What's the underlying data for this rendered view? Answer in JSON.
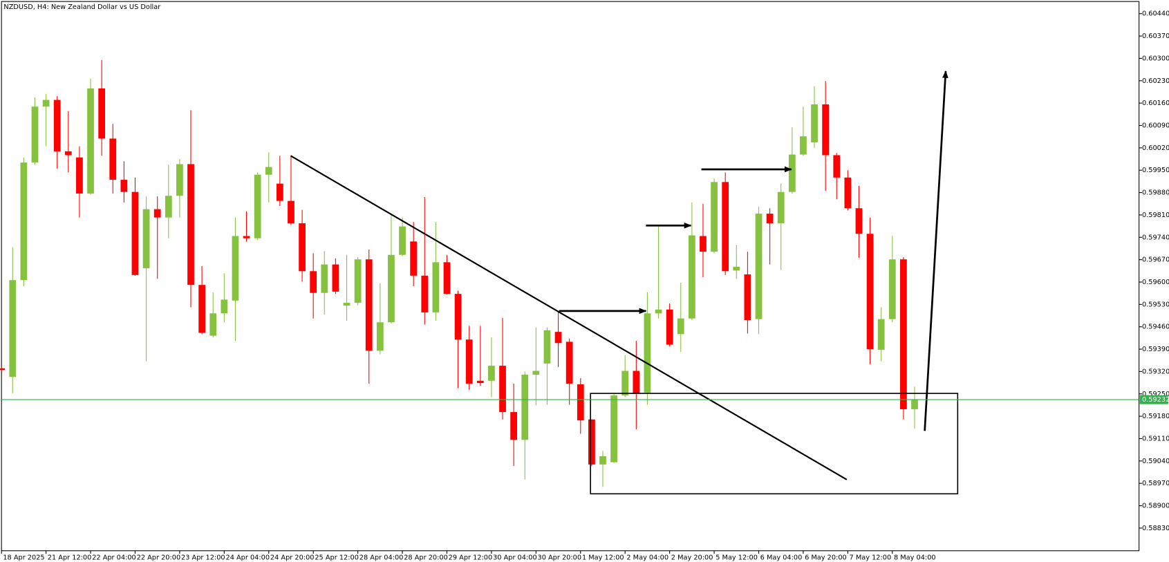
{
  "chart_data": {
    "type": "candlestick",
    "title": "NZDUSD, H4:  New Zealand Dollar vs US Dollar",
    "categories": [
      "18 Apr 2025",
      null,
      null,
      null,
      "21 Apr 12:00",
      null,
      null,
      null,
      "22 Apr 04:00",
      null,
      null,
      null,
      "22 Apr 20:00",
      null,
      null,
      null,
      "23 Apr 12:00",
      null,
      null,
      null,
      "24 Apr 04:00",
      null,
      null,
      null,
      "24 Apr 20:00",
      null,
      null,
      null,
      "25 Apr 12:00",
      null,
      null,
      null,
      "28 Apr 04:00",
      null,
      null,
      null,
      "28 Apr 20:00",
      null,
      null,
      null,
      "29 Apr 12:00",
      null,
      null,
      null,
      "30 Apr 04:00",
      null,
      null,
      null,
      "30 Apr 20:00",
      null,
      null,
      null,
      "1 May 12:00",
      null,
      null,
      null,
      "2 May 04:00",
      null,
      null,
      null,
      "2 May 20:00",
      null,
      null,
      null,
      "5 May 12:00",
      null,
      null,
      null,
      "6 May 04:00",
      null,
      null,
      null,
      "6 May 20:00",
      null,
      null,
      null,
      "7 May 12:00",
      null,
      null,
      null,
      "8 May 04:00",
      null,
      null
    ],
    "open": [
      0.5933,
      0.59303,
      0.59606,
      0.59974,
      0.60149,
      0.6017,
      0.60009,
      0.5999,
      0.59877,
      0.60206,
      0.60049,
      0.5992,
      0.59882,
      0.59643,
      0.59828,
      0.59802,
      0.5987,
      0.59969,
      0.59591,
      0.59432,
      0.59502,
      0.59542,
      0.59744,
      0.59737,
      0.59936,
      0.59908,
      0.59854,
      0.59784,
      0.59634,
      0.59566,
      0.59655,
      0.59526,
      0.59535,
      0.59671,
      0.59385,
      0.59474,
      0.59685,
      0.59727,
      0.5962,
      0.59505,
      0.59662,
      0.59563,
      0.5942,
      0.59291,
      0.59291,
      0.59338,
      0.59193,
      0.59106,
      0.5931,
      0.59345,
      0.59444,
      0.59413,
      0.5928,
      0.5917,
      0.59029,
      0.59036,
      0.59245,
      0.59322,
      0.59254,
      0.59502,
      0.59514,
      0.59437,
      0.59486,
      0.59744,
      0.59695,
      0.59913,
      0.59636,
      0.59624,
      0.59484,
      0.59814,
      0.59784,
      0.59882,
      0.59999,
      0.60037,
      0.60156,
      0.59997,
      0.59927,
      0.59831,
      0.59751,
      0.59388,
      0.59484,
      0.59671,
      0.59202
    ],
    "high": [
      0.59335,
      0.59709,
      0.5999,
      0.60178,
      0.60189,
      0.60182,
      0.60135,
      0.60025,
      0.60236,
      0.60295,
      0.60095,
      0.59978,
      0.59927,
      0.59868,
      0.59868,
      0.59967,
      0.59985,
      0.60138,
      0.5965,
      0.59568,
      0.59627,
      0.59802,
      0.59821,
      0.59943,
      0.60006,
      0.59995,
      0.59997,
      0.59826,
      0.5969,
      0.59697,
      0.59674,
      0.59685,
      0.59678,
      0.59702,
      0.59596,
      0.59814,
      0.59802,
      0.59788,
      0.59866,
      0.59788,
      0.59685,
      0.59573,
      0.59463,
      0.59463,
      0.59427,
      0.59488,
      0.59282,
      0.5932,
      0.59458,
      0.59458,
      0.59509,
      0.59423,
      0.59299,
      0.5917,
      0.59071,
      0.59252,
      0.59371,
      0.59416,
      0.59568,
      0.59774,
      0.59533,
      0.59598,
      0.59849,
      0.59845,
      0.59924,
      0.59943,
      0.59716,
      0.59695,
      0.59835,
      0.59831,
      0.59908,
      0.60084,
      0.60149,
      0.60213,
      0.60229,
      0.60004,
      0.5995,
      0.59901,
      0.59802,
      0.59521,
      0.59744,
      0.59678,
      0.59273
    ],
    "low": [
      0.5932,
      0.59252,
      0.59587,
      0.59967,
      0.60025,
      0.59955,
      0.59943,
      0.59802,
      0.59873,
      0.59995,
      0.59877,
      0.59849,
      0.5962,
      0.59352,
      0.5961,
      0.59737,
      0.59802,
      0.59521,
      0.59437,
      0.59427,
      0.59474,
      0.59416,
      0.59727,
      0.59732,
      0.59849,
      0.59838,
      0.59779,
      0.59601,
      0.59486,
      0.59498,
      0.59563,
      0.59479,
      0.59528,
      0.59282,
      0.59374,
      0.5947,
      0.59681,
      0.59587,
      0.59467,
      0.59479,
      0.59561,
      0.59268,
      0.59263,
      0.59275,
      0.5924,
      0.5917,
      0.59024,
      0.58982,
      0.59214,
      0.59216,
      0.59334,
      0.59216,
      0.59125,
      0.59024,
      0.58959,
      0.59034,
      0.5924,
      0.59139,
      0.59216,
      0.59486,
      0.59399,
      0.59381,
      0.59481,
      0.59615,
      0.5969,
      0.59622,
      0.5961,
      0.59439,
      0.59437,
      0.59655,
      0.59638,
      0.59877,
      0.59995,
      0.6002,
      0.59885,
      0.59859,
      0.59824,
      0.59676,
      0.59343,
      0.59352,
      0.59474,
      0.5917,
      0.59141
    ],
    "close": [
      0.59325,
      0.59606,
      0.59974,
      0.60149,
      0.6017,
      0.60009,
      0.59997,
      0.59877,
      0.60206,
      0.60049,
      0.5992,
      0.59882,
      0.59622,
      0.59828,
      0.59802,
      0.5987,
      0.59969,
      0.59591,
      0.59441,
      0.59502,
      0.59545,
      0.59744,
      0.59737,
      0.59936,
      0.5996,
      0.59854,
      0.59784,
      0.59634,
      0.59566,
      0.59655,
      0.5957,
      0.59535,
      0.59671,
      0.59385,
      0.59474,
      0.59685,
      0.59774,
      0.5962,
      0.59505,
      0.59662,
      0.59563,
      0.5942,
      0.59282,
      0.59284,
      0.59338,
      0.59193,
      0.59106,
      0.5931,
      0.59322,
      0.59449,
      0.59409,
      0.59282,
      0.59167,
      0.59029,
      0.59055,
      0.59245,
      0.59322,
      0.59252,
      0.59502,
      0.59514,
      0.59404,
      0.59486,
      0.59746,
      0.59695,
      0.59913,
      0.59634,
      0.59648,
      0.59481,
      0.59814,
      0.59784,
      0.59882,
      0.59999,
      0.60056,
      0.60156,
      0.59997,
      0.59927,
      0.59831,
      0.59751,
      0.5939,
      0.59484,
      0.59671,
      0.59202,
      0.59233
    ],
    "up_color": "#86c240",
    "down_color": "#ff0000",
    "current_price": 0.59232,
    "current_price_color": "#2fb24a",
    "ylim": [
      0.58759,
      0.60478
    ],
    "yticks": [
      {
        "value": 0.6044,
        "label": "0.60440"
      },
      {
        "value": 0.6037,
        "label": "0.60370"
      },
      {
        "value": 0.603,
        "label": "0.60300"
      },
      {
        "value": 0.6023,
        "label": "0.60230"
      },
      {
        "value": 0.6016,
        "label": "0.60160"
      },
      {
        "value": 0.6009,
        "label": "0.60090"
      },
      {
        "value": 0.6002,
        "label": "0.60020"
      },
      {
        "value": 0.5995,
        "label": "0.59950"
      },
      {
        "value": 0.5988,
        "label": "0.59880"
      },
      {
        "value": 0.5981,
        "label": "0.59810"
      },
      {
        "value": 0.5974,
        "label": "0.59740"
      },
      {
        "value": 0.5967,
        "label": "0.59670"
      },
      {
        "value": 0.596,
        "label": "0.59600"
      },
      {
        "value": 0.5953,
        "label": "0.59530"
      },
      {
        "value": 0.5946,
        "label": "0.59460"
      },
      {
        "value": 0.5939,
        "label": "0.59390"
      },
      {
        "value": 0.5932,
        "label": "0.59320"
      },
      {
        "value": 0.5925,
        "label": "0.59250"
      },
      {
        "value": 0.5918,
        "label": "0.59180"
      },
      {
        "value": 0.5911,
        "label": "0.59110"
      },
      {
        "value": 0.5904,
        "label": "0.59040"
      },
      {
        "value": 0.5897,
        "label": "0.58970"
      },
      {
        "value": 0.589,
        "label": "0.58900"
      },
      {
        "value": 0.5883,
        "label": "0.58830"
      }
    ]
  }
}
